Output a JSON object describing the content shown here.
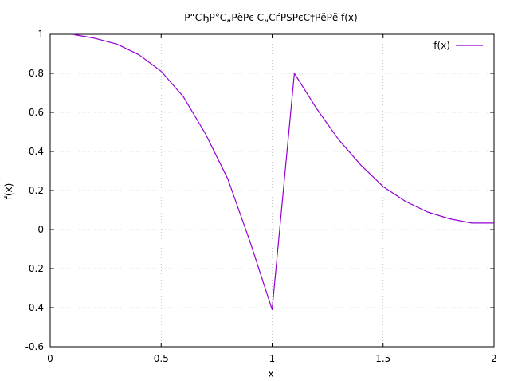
{
  "chart_data": {
    "type": "line",
    "title": "Р“СЂР°С„РёРє С„СѓРЅРєС†РёРё f(x)",
    "xlabel": "x",
    "ylabel": "f(x)",
    "xlim": [
      0,
      2
    ],
    "ylim": [
      -0.6,
      1
    ],
    "grid": true,
    "legend_position": "top-right",
    "x_ticks": [
      0,
      0.5,
      1,
      1.5,
      2
    ],
    "x_tick_labels": [
      "0",
      "0.5",
      "1",
      "1.5",
      "2"
    ],
    "y_ticks": [
      -0.6,
      -0.4,
      -0.2,
      0,
      0.2,
      0.4,
      0.6,
      0.8,
      1
    ],
    "y_tick_labels": [
      "-0.6",
      "-0.4",
      "-0.2",
      "0",
      "0.2",
      "0.4",
      "0.6",
      "0.8",
      "1"
    ],
    "series": [
      {
        "name": "f(x)",
        "color": "#9400d3",
        "x": [
          0.1,
          0.2,
          0.3,
          0.4,
          0.5,
          0.6,
          0.7,
          0.8,
          0.9,
          1.0,
          1.1,
          1.2,
          1.3,
          1.4,
          1.5,
          1.6,
          1.7,
          1.8,
          1.9,
          2.0
        ],
        "y": [
          1.0,
          0.98,
          0.95,
          0.895,
          0.81,
          0.68,
          0.49,
          0.26,
          -0.06,
          -0.41,
          0.8,
          0.62,
          0.46,
          0.33,
          0.22,
          0.145,
          0.09,
          0.055,
          0.033,
          0.033
        ]
      }
    ]
  }
}
